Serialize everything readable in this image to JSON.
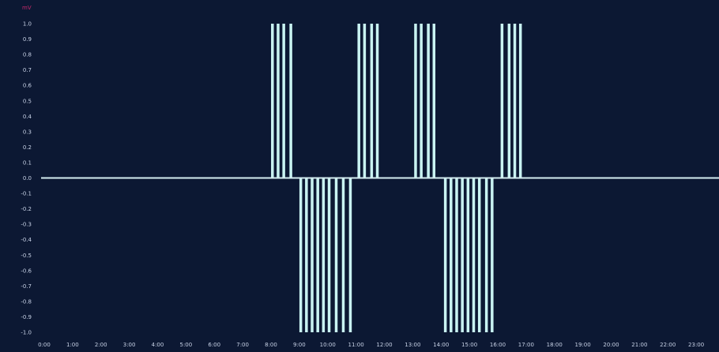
{
  "chart_data": {
    "type": "bar",
    "title": "",
    "unit_label": "mV",
    "xlabel": "",
    "ylabel": "",
    "xlim": [
      0,
      24
    ],
    "ylim": [
      -1.0,
      1.0
    ],
    "grid": false,
    "x_ticks": [
      {
        "x": 0,
        "label": "0:00"
      },
      {
        "x": 1,
        "label": "1:00"
      },
      {
        "x": 2,
        "label": "2:00"
      },
      {
        "x": 3,
        "label": "3:00"
      },
      {
        "x": 4,
        "label": "4:00"
      },
      {
        "x": 5,
        "label": "5:00"
      },
      {
        "x": 6,
        "label": "6:00"
      },
      {
        "x": 7,
        "label": "7:00"
      },
      {
        "x": 8,
        "label": "8:00"
      },
      {
        "x": 9,
        "label": "9:00"
      },
      {
        "x": 10,
        "label": "10:00"
      },
      {
        "x": 11,
        "label": "11:00"
      },
      {
        "x": 12,
        "label": "12:00"
      },
      {
        "x": 13,
        "label": "13:00"
      },
      {
        "x": 14,
        "label": "14:00"
      },
      {
        "x": 15,
        "label": "15:00"
      },
      {
        "x": 16,
        "label": "16:00"
      },
      {
        "x": 17,
        "label": "17:00"
      },
      {
        "x": 18,
        "label": "18:00"
      },
      {
        "x": 19,
        "label": "19:00"
      },
      {
        "x": 20,
        "label": "20:00"
      },
      {
        "x": 21,
        "label": "21:00"
      },
      {
        "x": 22,
        "label": "22:00"
      },
      {
        "x": 23,
        "label": "23:00"
      }
    ],
    "y_ticks": [
      {
        "y": 1.0,
        "label": "1.0"
      },
      {
        "y": 0.9,
        "label": "0.9"
      },
      {
        "y": 0.8,
        "label": "0.8"
      },
      {
        "y": 0.7,
        "label": "0.7"
      },
      {
        "y": 0.6,
        "label": "0.6"
      },
      {
        "y": 0.5,
        "label": "0.5"
      },
      {
        "y": 0.4,
        "label": "0.4"
      },
      {
        "y": 0.3,
        "label": "0.3"
      },
      {
        "y": 0.2,
        "label": "0.2"
      },
      {
        "y": 0.1,
        "label": "0.1"
      },
      {
        "y": 0.0,
        "label": "0.0"
      },
      {
        "y": -0.1,
        "label": "-0.1"
      },
      {
        "y": -0.2,
        "label": "-0.2"
      },
      {
        "y": -0.3,
        "label": "-0.3"
      },
      {
        "y": -0.4,
        "label": "-0.4"
      },
      {
        "y": -0.5,
        "label": "-0.5"
      },
      {
        "y": -0.6,
        "label": "-0.6"
      },
      {
        "y": -0.7,
        "label": "-0.7"
      },
      {
        "y": -0.8,
        "label": "-0.8"
      },
      {
        "y": -0.9,
        "label": "-0.9"
      },
      {
        "y": -1.0,
        "label": "-1.0"
      }
    ],
    "bar_color": "#c9f3f2",
    "baseline_color": "#d4ecf0",
    "background_color": "#0c1833",
    "unit_color": "#c62a6a",
    "series": [
      {
        "values": [
          {
            "x": 8.05,
            "y": 1.0
          },
          {
            "x": 8.25,
            "y": 1.0
          },
          {
            "x": 8.45,
            "y": 1.0
          },
          {
            "x": 8.7,
            "y": 1.0
          },
          {
            "x": 9.05,
            "y": -1.0
          },
          {
            "x": 9.25,
            "y": -1.0
          },
          {
            "x": 9.45,
            "y": -1.0
          },
          {
            "x": 9.65,
            "y": -1.0
          },
          {
            "x": 9.85,
            "y": -1.0
          },
          {
            "x": 10.05,
            "y": -1.0
          },
          {
            "x": 10.3,
            "y": -1.0
          },
          {
            "x": 10.55,
            "y": -1.0
          },
          {
            "x": 10.8,
            "y": -1.0
          },
          {
            "x": 11.1,
            "y": 1.0
          },
          {
            "x": 11.3,
            "y": 1.0
          },
          {
            "x": 11.55,
            "y": 1.0
          },
          {
            "x": 11.75,
            "y": 1.0
          },
          {
            "x": 13.1,
            "y": 1.0
          },
          {
            "x": 13.3,
            "y": 1.0
          },
          {
            "x": 13.55,
            "y": 1.0
          },
          {
            "x": 13.75,
            "y": 1.0
          },
          {
            "x": 14.15,
            "y": -1.0
          },
          {
            "x": 14.35,
            "y": -1.0
          },
          {
            "x": 14.55,
            "y": -1.0
          },
          {
            "x": 14.75,
            "y": -1.0
          },
          {
            "x": 14.95,
            "y": -1.0
          },
          {
            "x": 15.15,
            "y": -1.0
          },
          {
            "x": 15.35,
            "y": -1.0
          },
          {
            "x": 15.6,
            "y": -1.0
          },
          {
            "x": 15.8,
            "y": -1.0
          },
          {
            "x": 16.15,
            "y": 1.0
          },
          {
            "x": 16.4,
            "y": 1.0
          },
          {
            "x": 16.6,
            "y": 1.0
          },
          {
            "x": 16.8,
            "y": 1.0
          }
        ]
      }
    ]
  }
}
